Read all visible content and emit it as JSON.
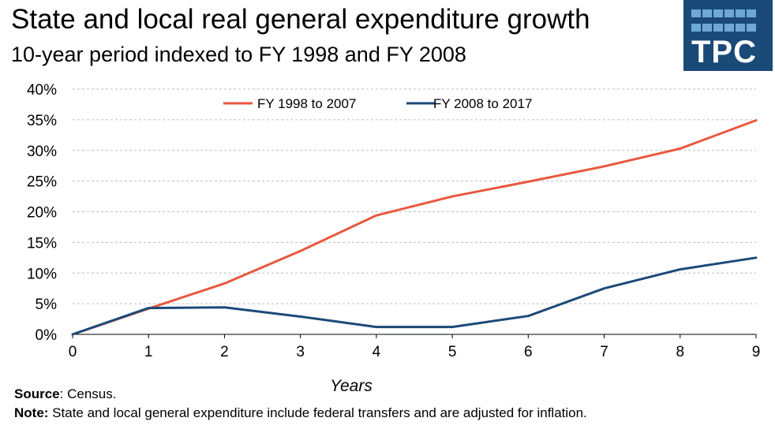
{
  "header": {
    "title": "State and local real general expenditure growth",
    "subtitle": "10-year period indexed to FY 1998 and FY 2008"
  },
  "logo": {
    "text": "TPC"
  },
  "colors": {
    "series1": "#e8583f",
    "series2": "#1b4a78",
    "grid": "#bdbdbd",
    "logo_bg": "#1a4a78",
    "logo_tile": "#6fa8d6"
  },
  "chart_data": {
    "type": "line",
    "title": "State and local real general expenditure growth",
    "subtitle": "10-year period indexed to FY 1998 and FY 2008",
    "xlabel": "Years",
    "ylabel": "",
    "x": [
      0,
      1,
      2,
      3,
      4,
      5,
      6,
      7,
      8,
      9
    ],
    "xticks": [
      "0",
      "1",
      "2",
      "3",
      "4",
      "5",
      "6",
      "7",
      "8",
      "9"
    ],
    "yticks": [
      "0%",
      "5%",
      "10%",
      "15%",
      "20%",
      "25%",
      "30%",
      "35%",
      "40%"
    ],
    "ylim": [
      0,
      40
    ],
    "xlim": [
      0,
      9
    ],
    "grid": "horizontal dashed",
    "legend_position": "top-center",
    "series": [
      {
        "name": "FY 1998 to 2007",
        "color": "#e8583f",
        "values": [
          0,
          4.2,
          8.3,
          13.6,
          19.4,
          22.5,
          24.9,
          27.4,
          30.3,
          34.9
        ]
      },
      {
        "name": "FY 2008 to 2017",
        "color": "#1b4a78",
        "values": [
          0,
          4.3,
          4.4,
          2.9,
          1.2,
          1.2,
          3.0,
          7.5,
          10.6,
          12.5
        ]
      }
    ]
  },
  "footnotes": {
    "source_label": "Source",
    "source_text": ": Census.",
    "note_label": "Note:",
    "note_text": " State and local general expenditure include federal transfers and are adjusted for inflation."
  }
}
